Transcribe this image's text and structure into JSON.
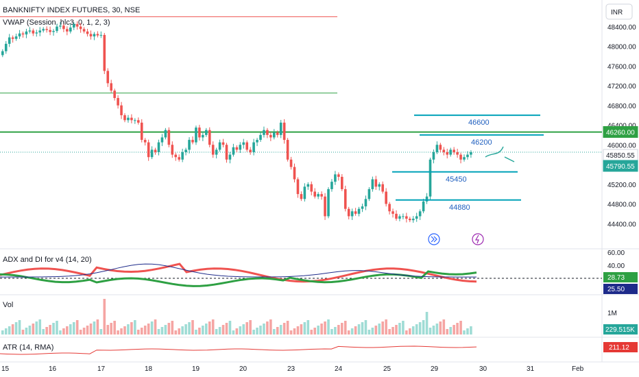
{
  "header": {
    "symbol_title": "BANKNIFTY INDEX FUTURES, 30, NSE",
    "indicator": "VWAP (Session, hlc3, 0, 1, 2, 3)"
  },
  "currency": "INR",
  "panes": {
    "adx_title": "ADX and DI for v4 (14, 20)",
    "vol_title": "Vol",
    "atr_title": "ATR (14, RMA)"
  },
  "colors": {
    "up": "#26a69a",
    "down": "#ef5350",
    "teal_line": "#00a2b8",
    "green_line": "#2ea043",
    "adx_line": "#1e2b8a",
    "vol_up": "#9fdcd5",
    "vol_down": "#f5a5a3",
    "atr_line": "#e53935",
    "annotation_text": "#1f5fbf",
    "icon_blue": "#2962ff",
    "icon_purple": "#9c27b0"
  },
  "chart_data": {
    "type": "candlestick",
    "price_axis": {
      "ylim": [
        44000,
        48800
      ],
      "ticks": [
        44400,
        44800,
        45200,
        45600,
        46000,
        46400,
        46800,
        47200,
        47600,
        48000,
        48400
      ],
      "tick_labels": [
        "44400.00",
        "44800.00",
        "45200.00",
        "45600.00",
        "46000.00",
        "46400.00",
        "46800.00",
        "47200.00",
        "47600.00",
        "48000.00",
        "48400.00"
      ]
    },
    "x_axis": {
      "labels": [
        "15",
        "16",
        "17",
        "18",
        "19",
        "20",
        "23",
        "24",
        "25",
        "29",
        "30",
        "31",
        "Feb"
      ]
    },
    "price_badges": [
      {
        "label": "46260.00",
        "value": 46260,
        "color": "#2ea043"
      },
      {
        "label": "45850.55",
        "value": 45850,
        "color": "#ffffff"
      },
      {
        "label": "45790.55",
        "value": 45790,
        "color": "#26a69a"
      }
    ],
    "horizontal_levels": [
      {
        "value": 48600,
        "color": "#ef5350"
      },
      {
        "value": 47050,
        "color": "#2ea043"
      },
      {
        "value": 46260,
        "color": "#2ea043"
      }
    ],
    "drawn_levels": [
      {
        "label": "46600",
        "value": 46600
      },
      {
        "label": "46200",
        "value": 46200
      },
      {
        "label": "45450",
        "value": 45450
      },
      {
        "label": "44880",
        "value": 44880
      }
    ],
    "closes": [
      47900,
      48050,
      48180,
      48150,
      48200,
      48260,
      48240,
      48300,
      48320,
      48260,
      48280,
      48320,
      48350,
      48330,
      48290,
      48310,
      48400,
      48420,
      48350,
      48300,
      48380,
      48450,
      48400,
      48350,
      48300,
      48250,
      48200,
      48250,
      48220,
      48230,
      47500,
      47250,
      47100,
      46950,
      46800,
      46600,
      46500,
      46550,
      46500,
      46500,
      46450,
      46100,
      46050,
      45750,
      45900,
      45850,
      46050,
      46150,
      46300,
      46000,
      45800,
      45750,
      45700,
      45850,
      45900,
      46100,
      46050,
      46350,
      46150,
      46200,
      46300,
      46000,
      45800,
      45900,
      46050,
      46000,
      45700,
      45800,
      45950,
      45900,
      46000,
      46050,
      45900,
      45850,
      46050,
      46100,
      46200,
      46300,
      46200,
      46150,
      46250,
      46200,
      46450,
      46100,
      45700,
      45550,
      45300,
      45000,
      44900,
      45150,
      45200,
      45050,
      44950,
      45000,
      44950,
      44550,
      45100,
      45250,
      45400,
      45350,
      45100,
      44700,
      44550,
      44650,
      44600,
      44700,
      44750,
      44900,
      45100,
      45300,
      45150,
      45200,
      45050,
      44800,
      44650,
      44600,
      44500,
      44550,
      44550,
      44500,
      44470,
      44500,
      44550,
      44650,
      44850,
      44950,
      45700,
      45850,
      46000,
      45900,
      45850,
      45800,
      45900,
      45850,
      45800,
      45700,
      45750,
      45800,
      45850
    ],
    "vwap_dashed_level": 45850,
    "adx": {
      "ylim": [
        0,
        60
      ],
      "tick_labels": [
        "60.00",
        "40.00"
      ],
      "badges": [
        {
          "label": "28.73",
          "color": "#2ea043"
        },
        {
          "label": "25.50",
          "color": "#1e2b8a"
        }
      ],
      "threshold": 20
    },
    "volume": {
      "tick_label": "1M",
      "badge": "229.515K"
    },
    "atr": {
      "badge": "211.12"
    }
  },
  "annotations": {
    "play_icon": "forward-circle-icon",
    "bolt_icon": "lightning-circle-icon"
  }
}
